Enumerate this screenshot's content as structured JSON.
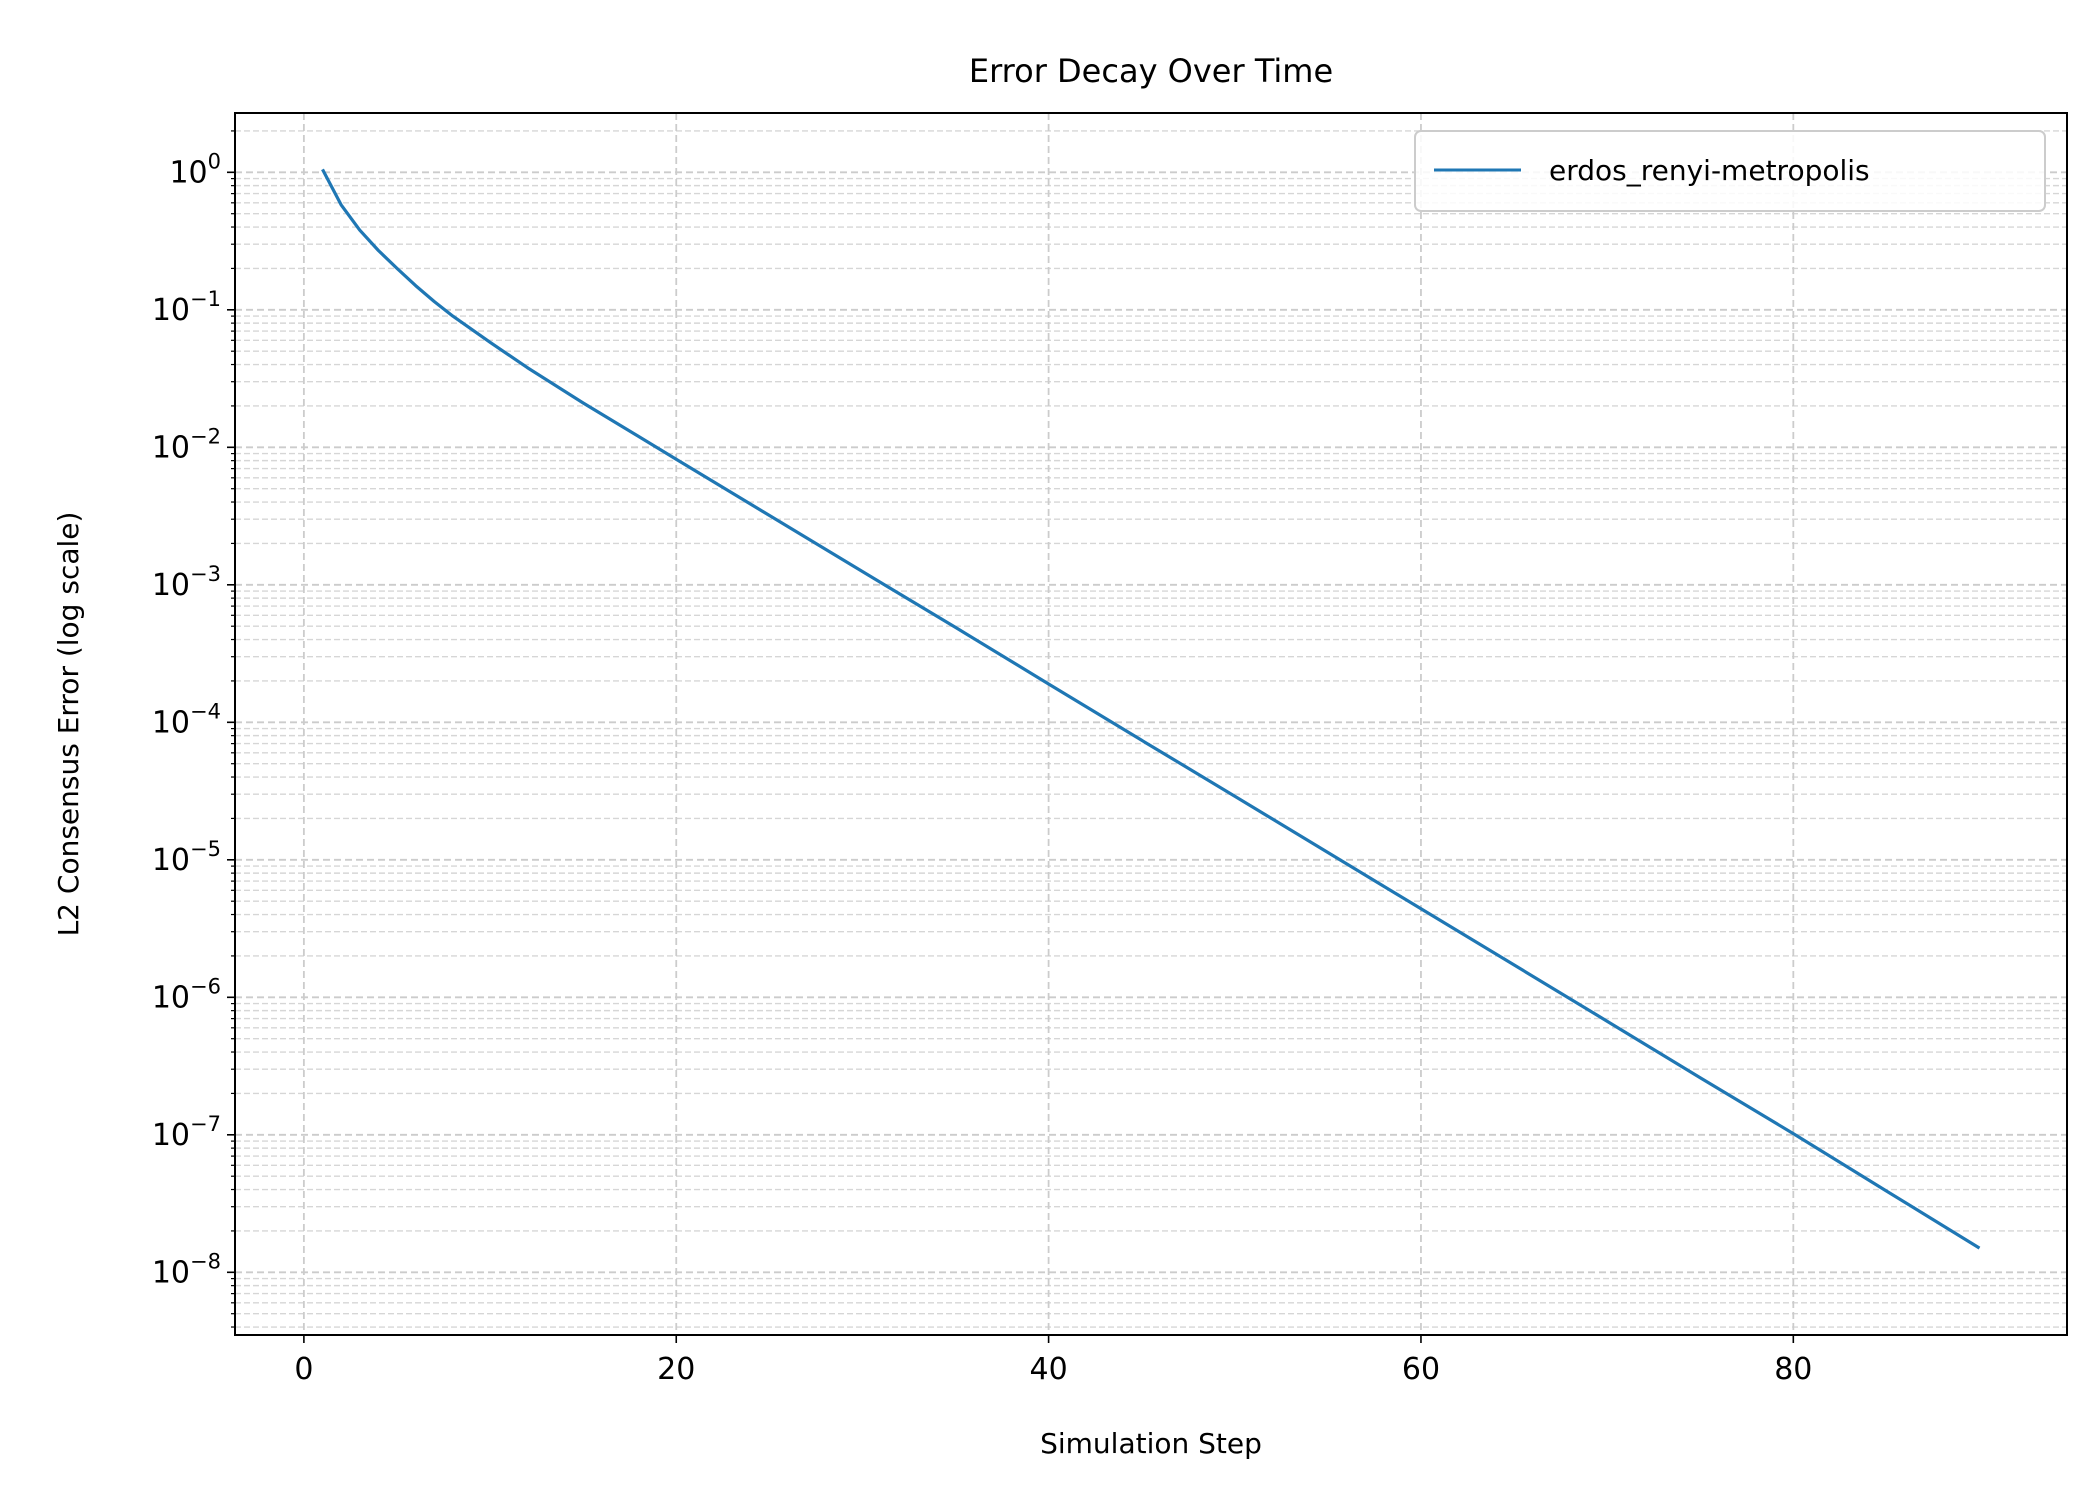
{
  "chart_data": {
    "type": "line",
    "title": "Error Decay Over Time",
    "xlabel": "Simulation Step",
    "ylabel": "L2 Consensus Error (log scale)",
    "yscale": "log",
    "xlim": [
      -3.7,
      94.7
    ],
    "ylim": [
      3.5e-09,
      2.7
    ],
    "xticks": [
      0,
      20,
      40,
      60,
      80
    ],
    "yticks": [
      1,
      0.1,
      0.01,
      0.001,
      0.0001,
      1e-05,
      1e-06,
      1e-07,
      1e-08
    ],
    "ytick_labels": [
      {
        "base": "10",
        "exp": "0"
      },
      {
        "base": "10",
        "exp": "−1"
      },
      {
        "base": "10",
        "exp": "−2"
      },
      {
        "base": "10",
        "exp": "−3"
      },
      {
        "base": "10",
        "exp": "−4"
      },
      {
        "base": "10",
        "exp": "−5"
      },
      {
        "base": "10",
        "exp": "−6"
      },
      {
        "base": "10",
        "exp": "−7"
      },
      {
        "base": "10",
        "exp": "−8"
      }
    ],
    "grid": true,
    "grid_style": "dashed",
    "legend_position": "upper right",
    "series": [
      {
        "name": "erdos_renyi-metropolis",
        "color": "#1f77b4",
        "x": [
          1,
          2,
          3,
          4,
          5,
          6,
          7,
          8,
          10,
          12,
          15,
          20,
          25,
          30,
          35,
          40,
          45,
          50,
          55,
          60,
          65,
          70,
          75,
          80,
          85,
          90
        ],
        "y": [
          1.05,
          0.58,
          0.38,
          0.27,
          0.2,
          0.15,
          0.115,
          0.09,
          0.058,
          0.038,
          0.021,
          0.0082,
          0.0032,
          0.00125,
          0.00049,
          0.00019,
          7.4e-05,
          2.9e-05,
          1.13e-05,
          4.4e-06,
          1.72e-06,
          6.7e-07,
          2.6e-07,
          1.02e-07,
          3.9e-08,
          1.5e-08
        ]
      }
    ]
  }
}
